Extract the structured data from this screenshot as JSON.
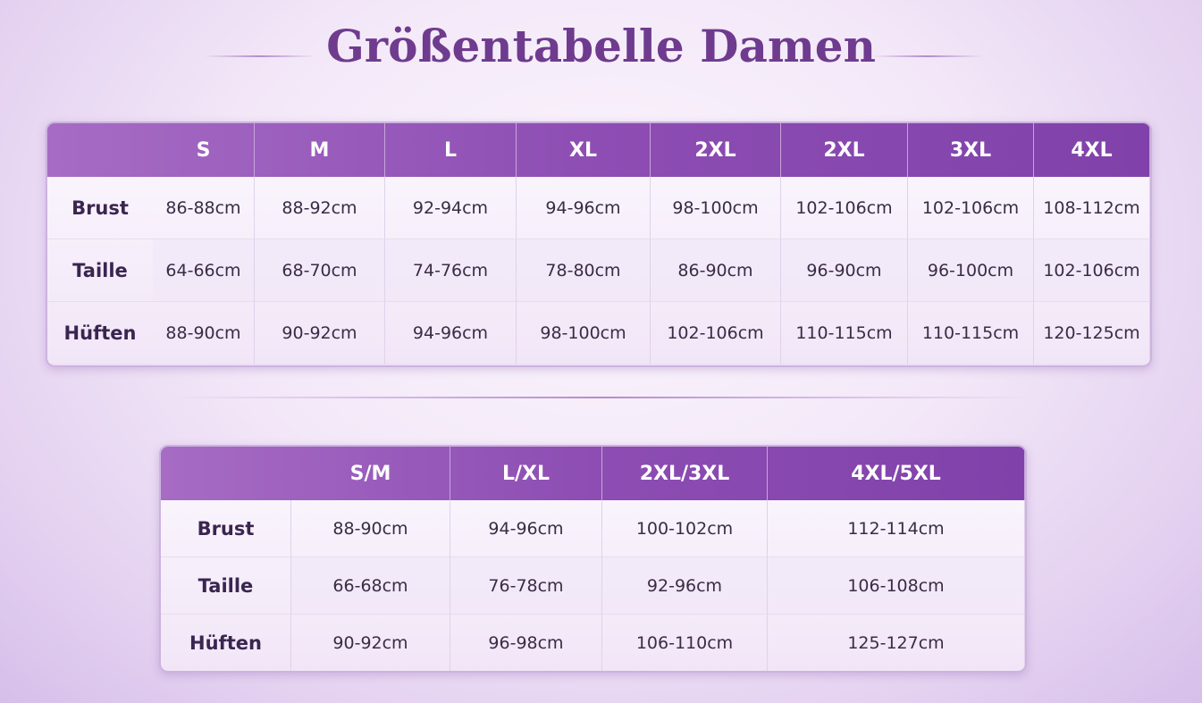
{
  "title": "Größentabelle Damen",
  "colors": {
    "accent": "#8d4db3",
    "title": "#6e3b8e"
  },
  "table1": {
    "headers": [
      "S",
      "M",
      "L",
      "XL",
      "2XL",
      "2XL",
      "3XL",
      "4XL"
    ],
    "rows": [
      {
        "label": "Brust",
        "values": [
          "86-88cm",
          "88-92cm",
          "92-94cm",
          "94-96cm",
          "98-100cm",
          "102-106cm",
          "102-106cm",
          "108-112cm"
        ]
      },
      {
        "label": "Taille",
        "values": [
          "64-66cm",
          "68-70cm",
          "74-76cm",
          "78-80cm",
          "86-90cm",
          "96-90cm",
          "96-100cm",
          "102-106cm"
        ]
      },
      {
        "label": "Hüften",
        "values": [
          "88-90cm",
          "90-92cm",
          "94-96cm",
          "98-100cm",
          "102-106cm",
          "110-115cm",
          "110-115cm",
          "120-125cm"
        ]
      }
    ]
  },
  "table2": {
    "headers": [
      "S/M",
      "L/XL",
      "2XL/3XL",
      "4XL/5XL"
    ],
    "rows": [
      {
        "label": "Brust",
        "values": [
          "88-90cm",
          "94-96cm",
          "100-102cm",
          "112-114cm"
        ]
      },
      {
        "label": "Taille",
        "values": [
          "66-68cm",
          "76-78cm",
          "92-96cm",
          "106-108cm"
        ]
      },
      {
        "label": "Hüften",
        "values": [
          "90-92cm",
          "96-98cm",
          "106-110cm",
          "125-127cm"
        ]
      }
    ]
  }
}
